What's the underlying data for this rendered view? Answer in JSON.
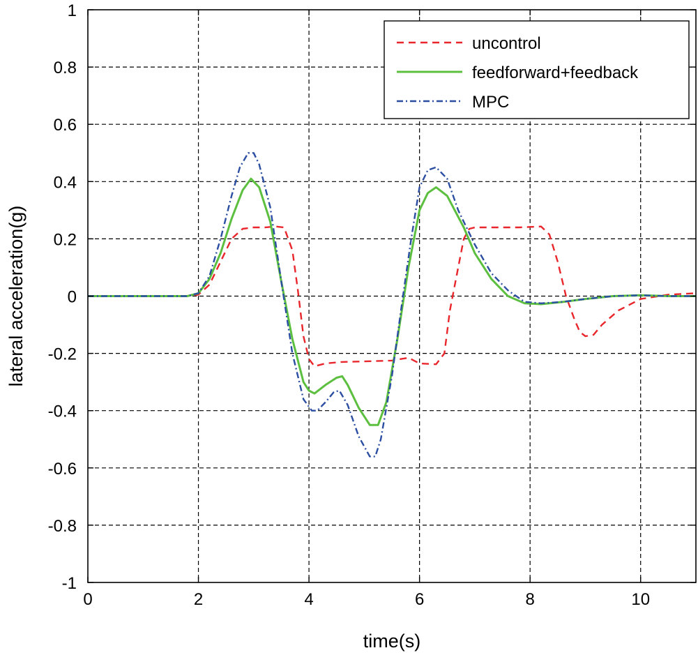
{
  "chart_data": {
    "type": "line",
    "title": "",
    "xlabel": "time(s)",
    "ylabel": "lateral acceleration(g)",
    "xlim": [
      0,
      11
    ],
    "ylim": [
      -1,
      1
    ],
    "xticks": [
      0,
      2,
      4,
      6,
      8,
      10
    ],
    "yticks": [
      -1,
      -0.8,
      -0.6,
      -0.4,
      -0.2,
      0,
      0.2,
      0.4,
      0.6,
      0.8,
      1
    ],
    "xtick_labels": [
      "0",
      "2",
      "4",
      "6",
      "8",
      "10"
    ],
    "ytick_labels": [
      "-1",
      "-0.8",
      "-0.6",
      "-0.4",
      "-0.2",
      "0",
      "0.2",
      "0.4",
      "0.6",
      "0.8",
      "1"
    ],
    "grid": true,
    "legend_position": "top-right",
    "series": [
      {
        "name": "uncontrol",
        "color": "#e8262b",
        "style": "dashed",
        "x": [
          0,
          1.8,
          2.0,
          2.2,
          2.4,
          2.6,
          2.8,
          3.0,
          3.2,
          3.4,
          3.55,
          3.7,
          3.8,
          3.9,
          4.0,
          4.1,
          4.3,
          4.6,
          5.0,
          5.5,
          5.8,
          6.0,
          6.3,
          6.45,
          6.55,
          6.7,
          6.8,
          6.9,
          7.0,
          7.3,
          7.8,
          8.2,
          8.35,
          8.5,
          8.65,
          8.8,
          8.9,
          9.0,
          9.15,
          9.3,
          9.6,
          10.0,
          10.5,
          11.0
        ],
        "y": [
          0,
          0,
          0.005,
          0.04,
          0.12,
          0.2,
          0.235,
          0.24,
          0.24,
          0.243,
          0.24,
          0.16,
          0.02,
          -0.14,
          -0.22,
          -0.245,
          -0.235,
          -0.23,
          -0.228,
          -0.225,
          -0.215,
          -0.235,
          -0.238,
          -0.2,
          -0.05,
          0.1,
          0.2,
          0.235,
          0.24,
          0.24,
          0.24,
          0.243,
          0.215,
          0.12,
          0.0,
          -0.08,
          -0.125,
          -0.14,
          -0.135,
          -0.1,
          -0.05,
          -0.01,
          0.005,
          0.01
        ]
      },
      {
        "name": "feedforward+feedback",
        "color": "#5cbf3f",
        "style": "solid",
        "x": [
          0,
          1.8,
          2.0,
          2.2,
          2.4,
          2.6,
          2.8,
          2.95,
          3.1,
          3.3,
          3.5,
          3.7,
          3.9,
          4.0,
          4.1,
          4.3,
          4.5,
          4.6,
          4.7,
          4.9,
          5.1,
          5.25,
          5.4,
          5.6,
          5.8,
          6.0,
          6.15,
          6.3,
          6.5,
          6.8,
          7.0,
          7.3,
          7.6,
          7.9,
          8.2,
          8.6,
          9.0,
          9.5,
          10.0,
          10.5,
          11.0
        ],
        "y": [
          0,
          0,
          0.01,
          0.06,
          0.15,
          0.27,
          0.37,
          0.41,
          0.38,
          0.26,
          0.05,
          -0.15,
          -0.3,
          -0.33,
          -0.34,
          -0.31,
          -0.285,
          -0.28,
          -0.31,
          -0.39,
          -0.45,
          -0.45,
          -0.37,
          -0.15,
          0.1,
          0.3,
          0.36,
          0.38,
          0.35,
          0.24,
          0.15,
          0.06,
          0.0,
          -0.025,
          -0.028,
          -0.02,
          -0.01,
          0.0,
          0.003,
          0.0,
          0.0
        ]
      },
      {
        "name": "MPC",
        "color": "#2b4ea2",
        "style": "dashdot",
        "x": [
          0,
          1.8,
          2.0,
          2.2,
          2.4,
          2.6,
          2.75,
          2.9,
          3.0,
          3.1,
          3.3,
          3.5,
          3.7,
          3.9,
          4.05,
          4.15,
          4.3,
          4.45,
          4.55,
          4.7,
          4.9,
          5.1,
          5.2,
          5.3,
          5.5,
          5.7,
          5.85,
          6.0,
          6.15,
          6.3,
          6.5,
          6.7,
          7.0,
          7.3,
          7.6,
          7.9,
          8.2,
          8.6,
          9.0,
          9.5,
          10.0,
          10.5,
          11.0
        ],
        "y": [
          0,
          0,
          0.01,
          0.07,
          0.2,
          0.35,
          0.45,
          0.5,
          0.5,
          0.46,
          0.31,
          0.05,
          -0.2,
          -0.36,
          -0.4,
          -0.4,
          -0.37,
          -0.335,
          -0.33,
          -0.38,
          -0.49,
          -0.56,
          -0.56,
          -0.5,
          -0.28,
          0.0,
          0.2,
          0.38,
          0.44,
          0.45,
          0.41,
          0.3,
          0.18,
          0.08,
          0.02,
          -0.02,
          -0.025,
          -0.02,
          -0.01,
          0.0,
          0.003,
          0.0,
          0.0
        ]
      }
    ]
  }
}
